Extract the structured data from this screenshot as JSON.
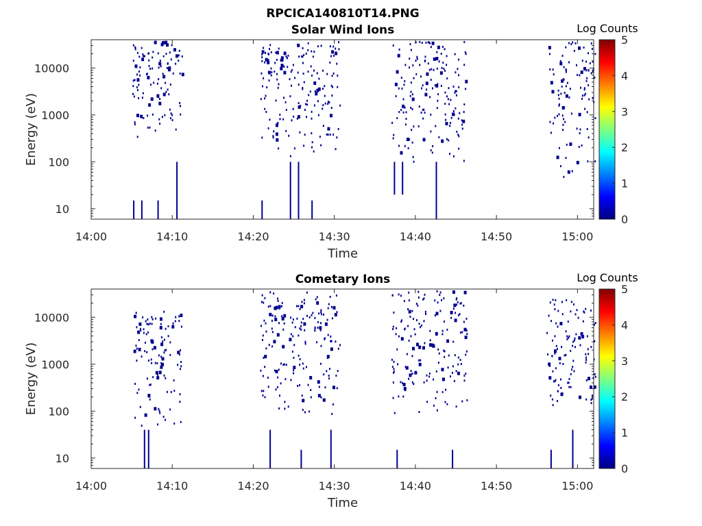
{
  "figure": {
    "title": "RPCICA140810T14.PNG"
  },
  "chart_data": [
    {
      "type": "heatmap",
      "title": "Solar Wind Ions",
      "xlabel": "Time",
      "ylabel": "Energy (eV)",
      "xlim": [
        "14:00",
        "15:02"
      ],
      "ylim": [
        6,
        40000
      ],
      "y_scale": "log",
      "x_ticks": [
        "14:00",
        "14:10",
        "14:20",
        "14:30",
        "14:40",
        "14:50",
        "15:00"
      ],
      "y_ticks": [
        10,
        100,
        1000,
        10000
      ],
      "y_tick_labels": [
        "10",
        "100",
        "1000",
        "10000"
      ],
      "colorbar": {
        "label": "Log Counts",
        "range": [
          0,
          5
        ],
        "ticks": [
          "0",
          "1",
          "2",
          "3",
          "4",
          "5"
        ],
        "colormap": "jet"
      },
      "bursts": [
        {
          "start": "14:05:00",
          "end": "14:11:10",
          "energy_range": [
            280,
            38000
          ]
        },
        {
          "start": "14:20:50",
          "end": "14:30:40",
          "energy_range": [
            130,
            38000
          ]
        },
        {
          "start": "14:37:00",
          "end": "14:46:10",
          "energy_range": [
            100,
            38000
          ]
        },
        {
          "start": "14:56:20",
          "end": "15:02:10",
          "energy_range": [
            50,
            38000
          ]
        }
      ],
      "low_energy_bursts": [
        {
          "time": "14:05:10",
          "energy_range": [
            6,
            15
          ]
        },
        {
          "time": "14:06:10",
          "energy_range": [
            6,
            15
          ]
        },
        {
          "time": "14:08:10",
          "energy_range": [
            6,
            15
          ]
        },
        {
          "time": "14:10:30",
          "energy_range": [
            6,
            100
          ]
        },
        {
          "time": "14:21:00",
          "energy_range": [
            6,
            15
          ]
        },
        {
          "time": "14:24:30",
          "energy_range": [
            6,
            100
          ]
        },
        {
          "time": "14:25:30",
          "energy_range": [
            6,
            100
          ]
        },
        {
          "time": "14:27:10",
          "energy_range": [
            6,
            15
          ]
        },
        {
          "time": "14:37:20",
          "energy_range": [
            20,
            100
          ]
        },
        {
          "time": "14:38:20",
          "energy_range": [
            20,
            100
          ]
        },
        {
          "time": "14:42:30",
          "energy_range": [
            6,
            100
          ]
        }
      ],
      "value_level": 0
    },
    {
      "type": "heatmap",
      "title": "Cometary Ions",
      "xlabel": "Time",
      "ylabel": "Energy (eV)",
      "xlim": [
        "14:00",
        "15:02"
      ],
      "ylim": [
        6,
        40000
      ],
      "y_scale": "log",
      "x_ticks": [
        "14:00",
        "14:10",
        "14:20",
        "14:30",
        "14:40",
        "14:50",
        "15:00"
      ],
      "y_ticks": [
        10,
        100,
        1000,
        10000
      ],
      "y_tick_labels": [
        "10",
        "100",
        "1000",
        "10000"
      ],
      "colorbar": {
        "label": "Log Counts",
        "range": [
          0,
          5
        ],
        "ticks": [
          "0",
          "1",
          "2",
          "3",
          "4",
          "5"
        ],
        "colormap": "jet"
      },
      "bursts": [
        {
          "start": "14:05:10",
          "end": "14:11:10",
          "energy_range": [
            50,
            15000
          ]
        },
        {
          "start": "14:20:50",
          "end": "14:30:40",
          "energy_range": [
            80,
            38000
          ]
        },
        {
          "start": "14:37:00",
          "end": "14:46:20",
          "energy_range": [
            80,
            38000
          ]
        },
        {
          "start": "14:56:10",
          "end": "15:02:10",
          "energy_range": [
            100,
            25000
          ]
        }
      ],
      "low_energy_bursts": [
        {
          "time": "14:06:30",
          "energy_range": [
            6,
            40
          ]
        },
        {
          "time": "14:07:00",
          "energy_range": [
            6,
            40
          ]
        },
        {
          "time": "14:22:00",
          "energy_range": [
            6,
            40
          ]
        },
        {
          "time": "14:25:50",
          "energy_range": [
            6,
            15
          ]
        },
        {
          "time": "14:29:30",
          "energy_range": [
            6,
            40
          ]
        },
        {
          "time": "14:37:40",
          "energy_range": [
            6,
            15
          ]
        },
        {
          "time": "14:44:30",
          "energy_range": [
            6,
            15
          ]
        },
        {
          "time": "14:56:40",
          "energy_range": [
            6,
            15
          ]
        },
        {
          "time": "14:59:20",
          "energy_range": [
            6,
            40
          ]
        }
      ],
      "value_level": 0
    }
  ],
  "colors": {
    "counts_level_0": "#00008f",
    "axis": "#262626",
    "background": "#ffffff"
  }
}
